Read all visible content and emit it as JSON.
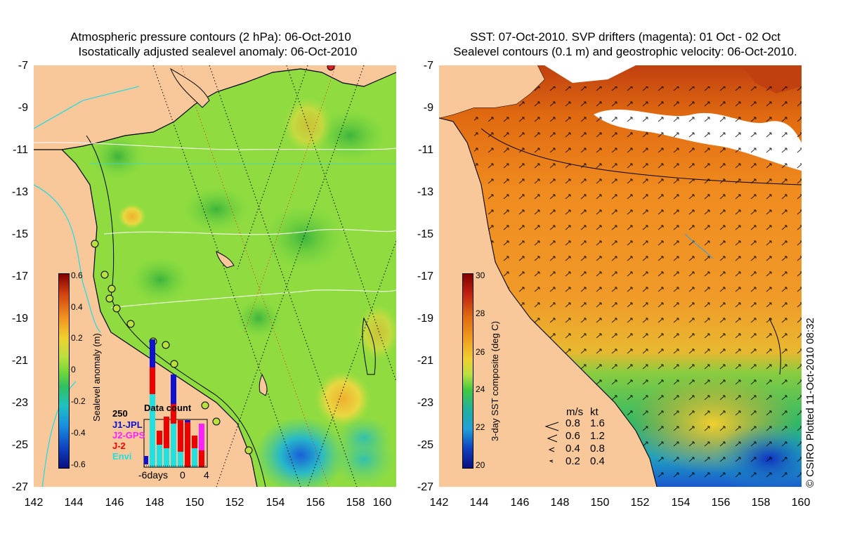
{
  "left": {
    "title_line1": "Atmospheric pressure contours (2 hPa): 06-Oct-2010",
    "title_line2": "Isostatically adjusted sealevel anomaly: 06-Oct-2010",
    "colorbar": {
      "title": "Sealevel anomaly (m)",
      "labels": [
        "0.6",
        "0.4",
        "0.2",
        "0",
        "-0.2",
        "-0.4",
        "-0.6"
      ]
    },
    "data_count": {
      "title": "Data count",
      "y_label": "250",
      "x_labels": [
        "-6days",
        "0",
        "4"
      ],
      "sources": [
        {
          "name": "J1-JPL",
          "color": "#1010d0"
        },
        {
          "name": "J2-GPS",
          "color": "#ff20ff"
        },
        {
          "name": "J-2",
          "color": "#ee0000"
        },
        {
          "name": "Envi",
          "color": "#20e0e0"
        }
      ]
    }
  },
  "right": {
    "title_line1": "SST: 07-Oct-2010. SVP drifters (magenta): 01 Oct - 02 Oct",
    "title_line2": "Sealevel contours (0.1 m) and geostrophic velocity: 06-Oct-2010.",
    "colorbar": {
      "title": "3-day SST composite (deg C)",
      "labels": [
        "30",
        "28",
        "26",
        "24",
        "22",
        "20"
      ]
    },
    "velocity_legend": {
      "header_ms": "m/s",
      "header_kt": "kt",
      "rows": [
        {
          "ms": "0.8",
          "kt": "1.6"
        },
        {
          "ms": "0.6",
          "kt": "1.2"
        },
        {
          "ms": "0.4",
          "kt": "0.8"
        },
        {
          "ms": "0.2",
          "kt": "0.4"
        }
      ]
    }
  },
  "y_ticks": [
    "-7",
    "-9",
    "-11",
    "-13",
    "-15",
    "-17",
    "-19",
    "-21",
    "-23",
    "-25",
    "-27"
  ],
  "x_ticks": [
    "142",
    "144",
    "146",
    "148",
    "150",
    "152",
    "154",
    "156",
    "158",
    "160"
  ],
  "credit": "© CSIRO Plotted 11-Oct-2010 08:32",
  "colors": {
    "land": "#f8c89a",
    "sla_zero": "#78d838",
    "sst_warm": "#e89020",
    "sst_cool": "#30c060",
    "cloud": "#ffffff"
  }
}
